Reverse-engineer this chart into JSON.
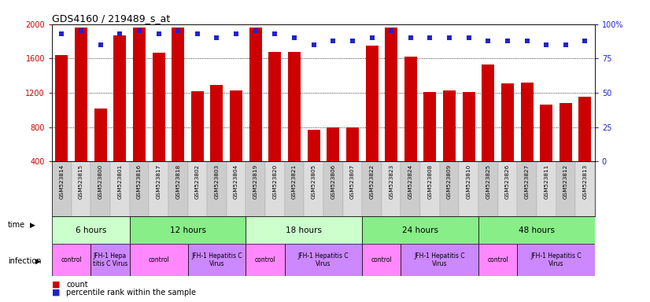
{
  "title": "GDS4160 / 219489_s_at",
  "samples": [
    "GSM523814",
    "GSM523815",
    "GSM523800",
    "GSM523801",
    "GSM523816",
    "GSM523817",
    "GSM523818",
    "GSM523802",
    "GSM523803",
    "GSM523804",
    "GSM523819",
    "GSM523820",
    "GSM523821",
    "GSM523805",
    "GSM523806",
    "GSM523807",
    "GSM523822",
    "GSM523823",
    "GSM523824",
    "GSM523808",
    "GSM523809",
    "GSM523810",
    "GSM523825",
    "GSM523826",
    "GSM523827",
    "GSM523811",
    "GSM523812",
    "GSM523813"
  ],
  "counts": [
    1640,
    1960,
    1020,
    1870,
    1960,
    1670,
    1960,
    1220,
    1290,
    1230,
    1960,
    1680,
    1680,
    770,
    800,
    800,
    1750,
    1960,
    1620,
    1210,
    1230,
    1210,
    1530,
    1310,
    1320,
    1060,
    1080,
    1150
  ],
  "percentile": [
    93,
    95,
    85,
    93,
    95,
    93,
    95,
    93,
    90,
    93,
    95,
    93,
    90,
    85,
    88,
    88,
    90,
    95,
    90,
    90,
    90,
    90,
    88,
    88,
    88,
    85,
    85,
    88
  ],
  "ylim_min": 400,
  "ylim_max": 2000,
  "y_ticks": [
    400,
    800,
    1200,
    1600,
    2000
  ],
  "y_right_ticks": [
    0,
    25,
    50,
    75,
    100
  ],
  "bar_color": "#cc0000",
  "dot_color": "#2222cc",
  "time_groups": [
    {
      "label": "6 hours",
      "start": 0,
      "end": 4,
      "color": "#ccffcc"
    },
    {
      "label": "12 hours",
      "start": 4,
      "end": 10,
      "color": "#88ee88"
    },
    {
      "label": "18 hours",
      "start": 10,
      "end": 16,
      "color": "#ccffcc"
    },
    {
      "label": "24 hours",
      "start": 16,
      "end": 22,
      "color": "#88ee88"
    },
    {
      "label": "48 hours",
      "start": 22,
      "end": 28,
      "color": "#88ee88"
    }
  ],
  "infection_groups": [
    {
      "label": "control",
      "start": 0,
      "end": 2,
      "color": "#ff88ff"
    },
    {
      "label": "JFH-1 Hepa\ntitis C Virus",
      "start": 2,
      "end": 4,
      "color": "#cc88ff"
    },
    {
      "label": "control",
      "start": 4,
      "end": 7,
      "color": "#ff88ff"
    },
    {
      "label": "JFH-1 Hepatitis C\nVirus",
      "start": 7,
      "end": 10,
      "color": "#cc88ff"
    },
    {
      "label": "control",
      "start": 10,
      "end": 12,
      "color": "#ff88ff"
    },
    {
      "label": "JFH-1 Hepatitis C\nVirus",
      "start": 12,
      "end": 16,
      "color": "#cc88ff"
    },
    {
      "label": "control",
      "start": 16,
      "end": 18,
      "color": "#ff88ff"
    },
    {
      "label": "JFH-1 Hepatitis C\nVirus",
      "start": 18,
      "end": 22,
      "color": "#cc88ff"
    },
    {
      "label": "control",
      "start": 22,
      "end": 24,
      "color": "#ff88ff"
    },
    {
      "label": "JFH-1 Hepatitis C\nVirus",
      "start": 24,
      "end": 28,
      "color": "#cc88ff"
    }
  ],
  "bg_color": "#ffffff"
}
